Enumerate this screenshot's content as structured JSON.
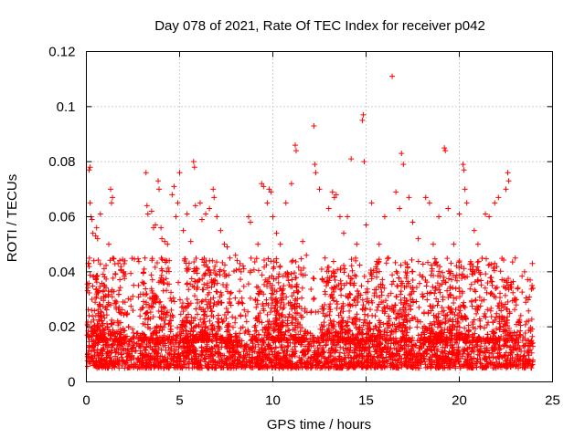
{
  "chart_data": {
    "type": "scatter",
    "title": "Day 078 of 2021, Rate Of TEC Index for receiver p042",
    "xlabel": "GPS time / hours",
    "ylabel": "ROTI / TECUs",
    "xlim": [
      0,
      25
    ],
    "ylim": [
      0,
      0.12
    ],
    "xticks": [
      0,
      5,
      10,
      15,
      20,
      25
    ],
    "yticks": [
      0,
      0.02,
      0.04,
      0.06,
      0.08,
      0.1,
      0.12
    ],
    "xtick_labels": [
      "0",
      "5",
      "10",
      "15",
      "20",
      "25"
    ],
    "ytick_labels": [
      "0",
      "0.02",
      "0.04",
      "0.06",
      "0.08",
      "0.1",
      "0.12"
    ],
    "grid": true,
    "marker": "+",
    "color": "#ff0000",
    "series": [
      {
        "name": "ROTI",
        "points": [
          [
            0.15,
            0.077
          ],
          [
            0.2,
            0.078
          ],
          [
            0.2,
            0.065
          ],
          [
            0.25,
            0.06
          ],
          [
            0.3,
            0.059
          ],
          [
            0.35,
            0.054
          ],
          [
            0.5,
            0.053
          ],
          [
            0.55,
            0.056
          ],
          [
            0.6,
            0.052
          ],
          [
            0.75,
            0.061
          ],
          [
            0.1,
            0.043
          ],
          [
            0.4,
            0.044
          ],
          [
            0.5,
            0.038
          ],
          [
            1.3,
            0.07
          ],
          [
            1.35,
            0.065
          ],
          [
            1.4,
            0.067
          ],
          [
            1.2,
            0.05
          ],
          [
            1.7,
            0.043
          ],
          [
            2.0,
            0.04
          ],
          [
            2.2,
            0.025
          ],
          [
            2.5,
            0.026
          ],
          [
            2.8,
            0.035
          ],
          [
            3.1,
            0.041
          ],
          [
            3.2,
            0.076
          ],
          [
            3.25,
            0.064
          ],
          [
            3.3,
            0.061
          ],
          [
            3.5,
            0.062
          ],
          [
            3.6,
            0.056
          ],
          [
            3.7,
            0.057
          ],
          [
            3.85,
            0.073
          ],
          [
            3.9,
            0.07
          ],
          [
            4.0,
            0.056
          ],
          [
            4.05,
            0.052
          ],
          [
            4.2,
            0.051
          ],
          [
            4.35,
            0.05
          ],
          [
            4.6,
            0.068
          ],
          [
            4.7,
            0.071
          ],
          [
            4.8,
            0.06
          ],
          [
            4.9,
            0.065
          ],
          [
            5.0,
            0.076
          ],
          [
            5.2,
            0.055
          ],
          [
            5.4,
            0.061
          ],
          [
            5.6,
            0.051
          ],
          [
            5.75,
            0.08
          ],
          [
            5.8,
            0.078
          ],
          [
            5.85,
            0.064
          ],
          [
            6.1,
            0.065
          ],
          [
            6.2,
            0.059
          ],
          [
            6.4,
            0.061
          ],
          [
            6.6,
            0.063
          ],
          [
            6.8,
            0.07
          ],
          [
            6.85,
            0.067
          ],
          [
            7.0,
            0.06
          ],
          [
            7.2,
            0.055
          ],
          [
            7.4,
            0.05
          ],
          [
            7.55,
            0.049
          ],
          [
            7.7,
            0.045
          ],
          [
            8.0,
            0.046
          ],
          [
            8.3,
            0.04
          ],
          [
            8.7,
            0.06
          ],
          [
            8.8,
            0.058
          ],
          [
            9.2,
            0.05
          ],
          [
            9.4,
            0.072
          ],
          [
            9.5,
            0.071
          ],
          [
            9.7,
            0.065
          ],
          [
            9.8,
            0.07
          ],
          [
            9.9,
            0.069
          ],
          [
            10.0,
            0.06
          ],
          [
            10.2,
            0.054
          ],
          [
            10.4,
            0.05
          ],
          [
            10.7,
            0.065
          ],
          [
            11.0,
            0.072
          ],
          [
            11.2,
            0.086
          ],
          [
            11.25,
            0.084
          ],
          [
            11.6,
            0.051
          ],
          [
            11.8,
            0.046
          ],
          [
            12.2,
            0.093
          ],
          [
            12.25,
            0.079
          ],
          [
            12.3,
            0.076
          ],
          [
            12.5,
            0.07
          ],
          [
            12.8,
            0.045
          ],
          [
            13.0,
            0.063
          ],
          [
            13.2,
            0.069
          ],
          [
            13.3,
            0.067
          ],
          [
            13.4,
            0.068
          ],
          [
            13.6,
            0.06
          ],
          [
            13.8,
            0.054
          ],
          [
            14.0,
            0.06
          ],
          [
            14.2,
            0.081
          ],
          [
            14.5,
            0.05
          ],
          [
            14.8,
            0.095
          ],
          [
            14.85,
            0.097
          ],
          [
            14.9,
            0.08
          ],
          [
            15.0,
            0.057
          ],
          [
            15.3,
            0.065
          ],
          [
            15.7,
            0.05
          ],
          [
            16.0,
            0.06
          ],
          [
            16.2,
            0.045
          ],
          [
            16.4,
            0.111
          ],
          [
            16.6,
            0.069
          ],
          [
            16.8,
            0.063
          ],
          [
            16.9,
            0.083
          ],
          [
            17.0,
            0.079
          ],
          [
            17.3,
            0.067
          ],
          [
            17.5,
            0.058
          ],
          [
            17.8,
            0.052
          ],
          [
            18.2,
            0.067
          ],
          [
            18.4,
            0.065
          ],
          [
            18.6,
            0.05
          ],
          [
            18.9,
            0.06
          ],
          [
            19.2,
            0.085
          ],
          [
            19.25,
            0.084
          ],
          [
            19.4,
            0.063
          ],
          [
            19.7,
            0.05
          ],
          [
            20.0,
            0.061
          ],
          [
            20.2,
            0.079
          ],
          [
            20.25,
            0.077
          ],
          [
            20.3,
            0.07
          ],
          [
            20.4,
            0.065
          ],
          [
            20.8,
            0.055
          ],
          [
            21.0,
            0.05
          ],
          [
            21.4,
            0.061
          ],
          [
            21.6,
            0.06
          ],
          [
            21.9,
            0.065
          ],
          [
            22.1,
            0.067
          ],
          [
            22.5,
            0.07
          ],
          [
            22.6,
            0.076
          ],
          [
            22.65,
            0.073
          ],
          [
            23.0,
            0.045
          ],
          [
            23.5,
            0.04
          ],
          [
            23.8,
            0.037
          ],
          [
            23.9,
            0.035
          ],
          [
            23.95,
            0.034
          ]
        ],
        "baseline_band": [
          0.005,
          0.015
        ],
        "active_band_max": 0.045
      }
    ]
  }
}
